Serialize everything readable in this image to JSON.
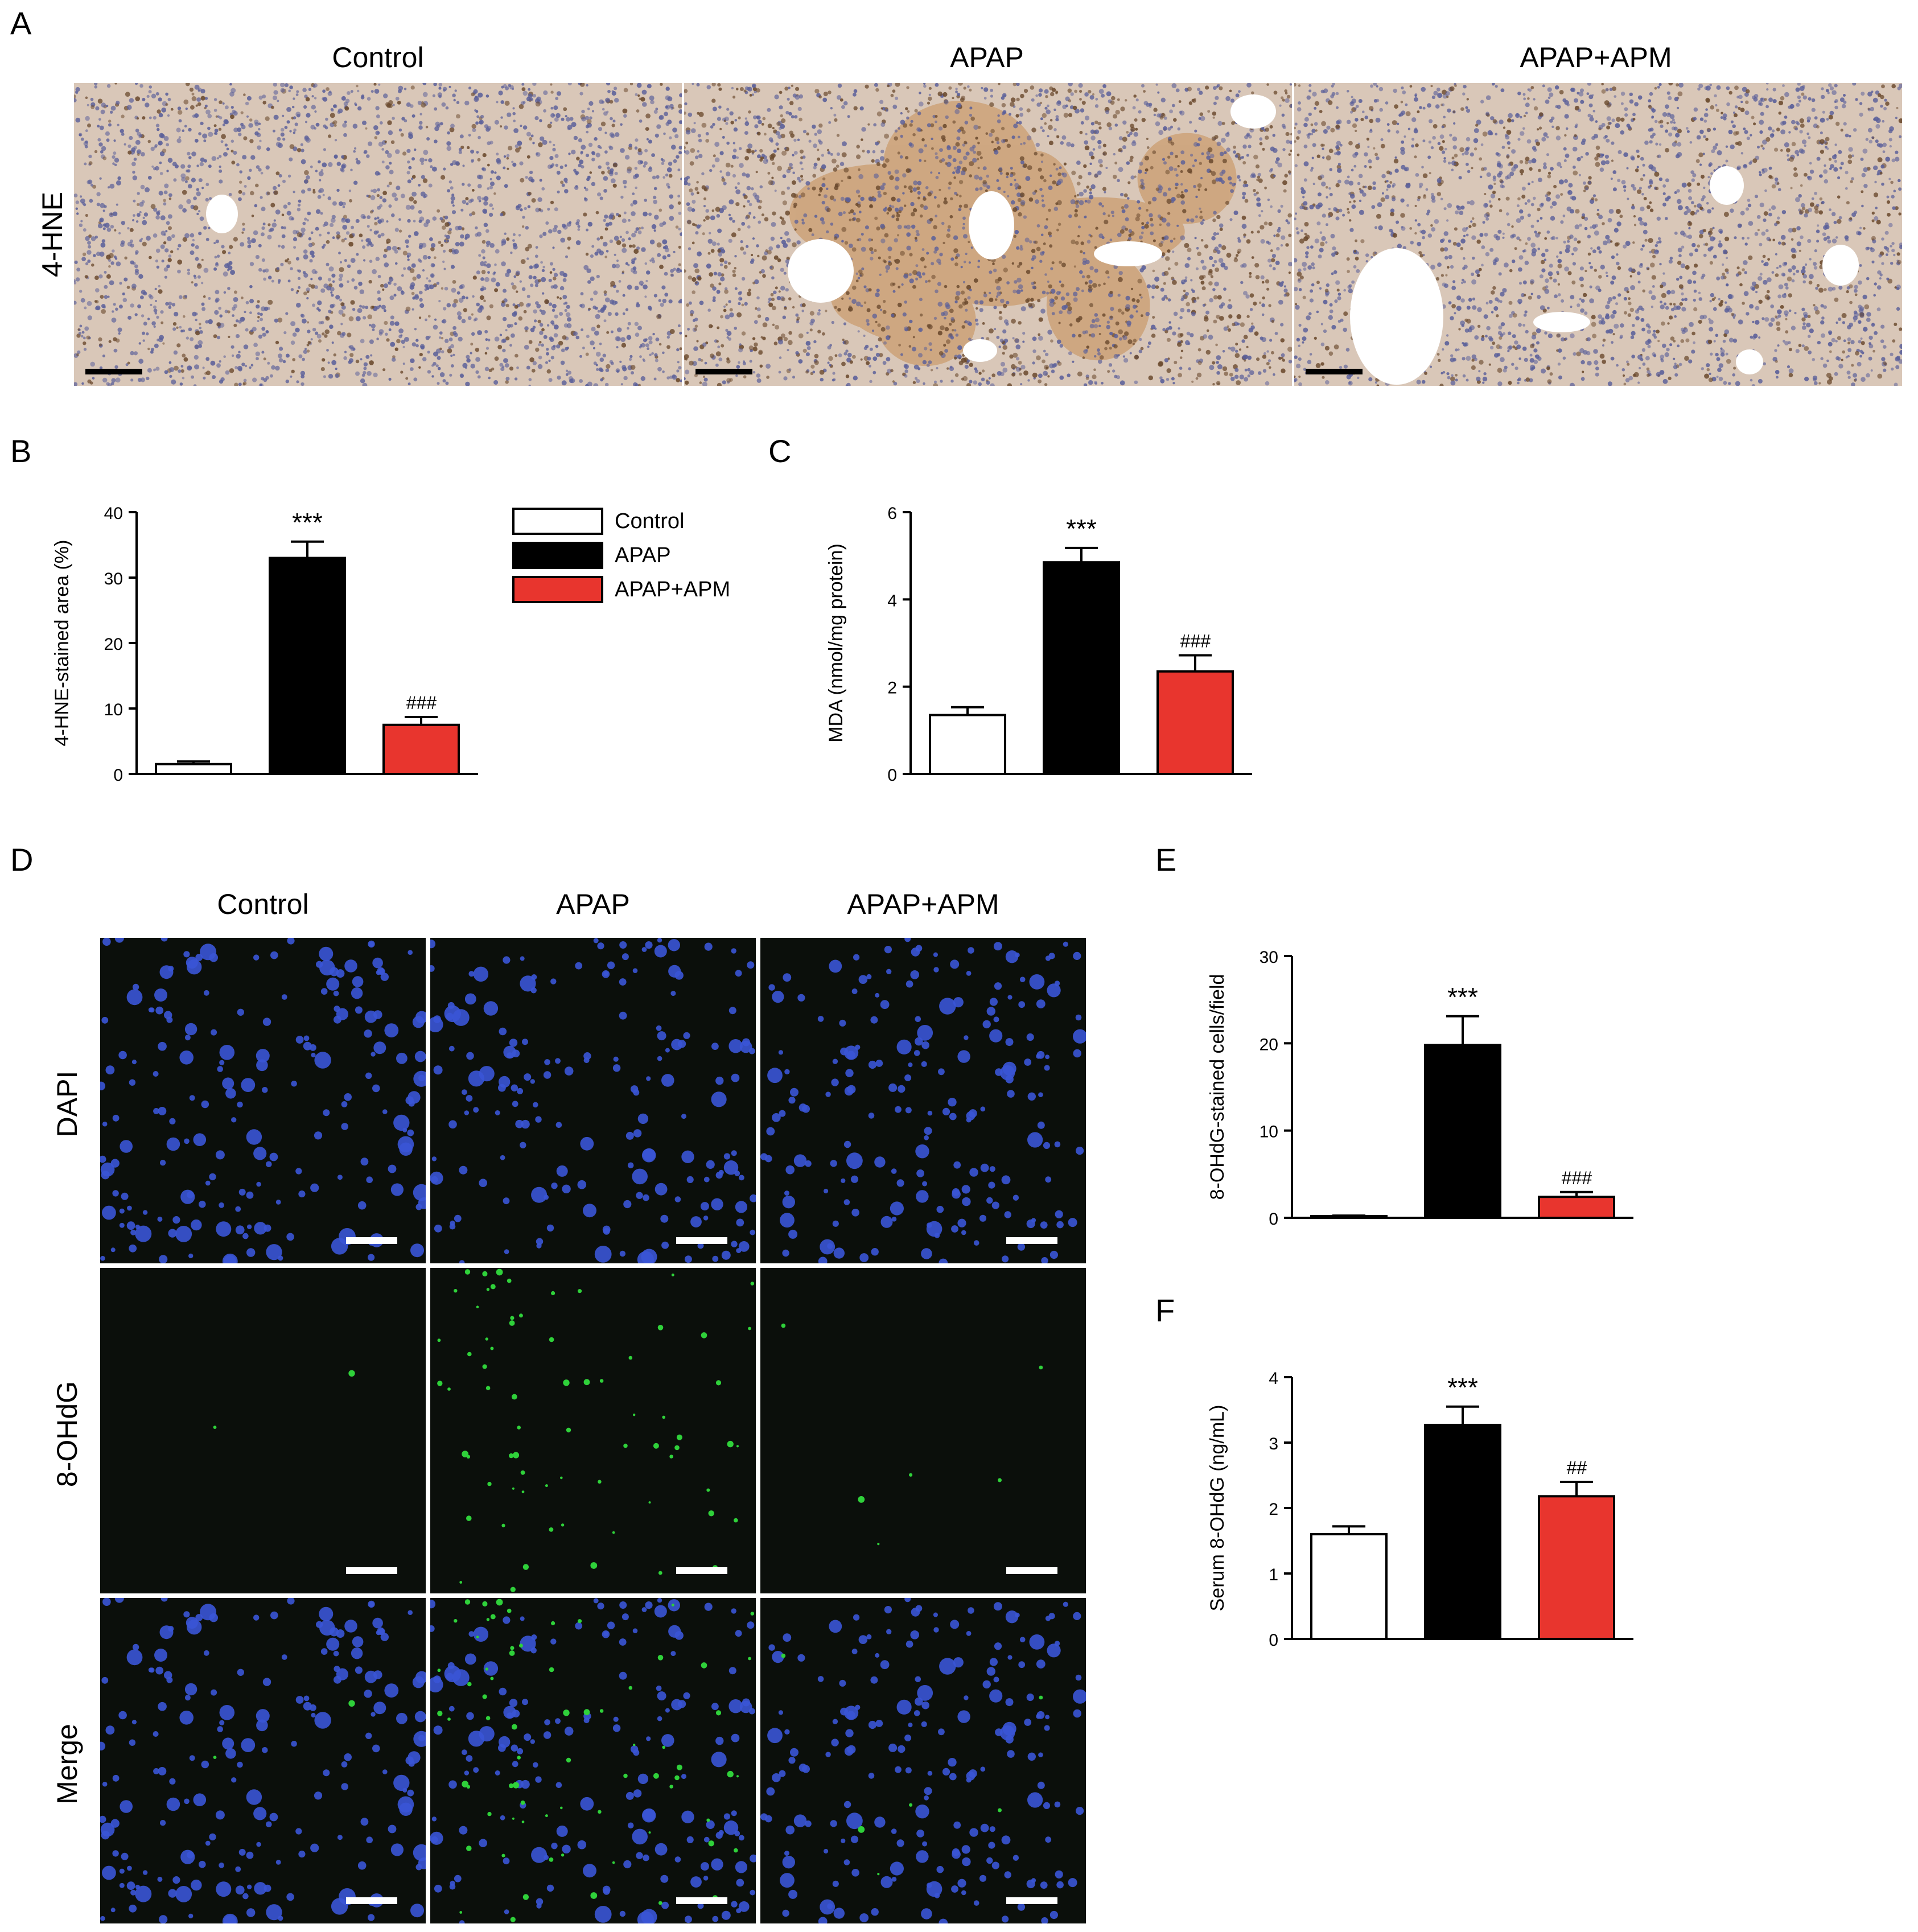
{
  "panels": {
    "A": "A",
    "B": "B",
    "C": "C",
    "D": "D",
    "E": "E",
    "F": "F"
  },
  "groups": [
    "Control",
    "APAP",
    "APAP+APM"
  ],
  "panel_a": {
    "row_label": "4-HNE",
    "columns": [
      "Control",
      "APAP",
      "APAP+APM"
    ]
  },
  "panel_d": {
    "columns": [
      "Control",
      "APAP",
      "APAP+APM"
    ],
    "rows": [
      "DAPI",
      "8-OHdG",
      "Merge"
    ]
  },
  "legend": {
    "items": [
      {
        "label": "Control",
        "color": "#ffffff"
      },
      {
        "label": "APAP",
        "color": "#000000"
      },
      {
        "label": "APAP+APM",
        "color": "#e8352e"
      }
    ]
  },
  "colors": {
    "control": "#ffffff",
    "apap": "#000000",
    "apap_apm": "#e8352e",
    "ihc_background": "#d9c7b8",
    "if_background": "#0b0f0b",
    "dapi": "#3a55d6",
    "ohdg": "#2fd13a"
  },
  "chart_data": [
    {
      "id": "B",
      "type": "bar",
      "categories": [
        "Control",
        "APAP",
        "APAP+APM"
      ],
      "values": [
        1.5,
        33,
        7.5
      ],
      "errors": [
        0.4,
        2.5,
        1.2
      ],
      "ylabel": "4-HNE-stained area (%)",
      "ylim": [
        0,
        40
      ],
      "yticks": [
        0,
        10,
        20,
        30,
        40
      ],
      "annotations": [
        "",
        "***",
        "###"
      ],
      "colors": [
        "#ffffff",
        "#000000",
        "#e8352e"
      ]
    },
    {
      "id": "C",
      "type": "bar",
      "categories": [
        "Control",
        "APAP",
        "APAP+APM"
      ],
      "values": [
        1.35,
        4.85,
        2.35
      ],
      "errors": [
        0.18,
        0.33,
        0.37
      ],
      "ylabel": "MDA  (nmol/mg protein)",
      "ylim": [
        0,
        6
      ],
      "yticks": [
        0,
        2,
        4,
        6
      ],
      "annotations": [
        "",
        "***",
        "###"
      ],
      "colors": [
        "#ffffff",
        "#000000",
        "#e8352e"
      ]
    },
    {
      "id": "E",
      "type": "bar",
      "categories": [
        "Control",
        "APAP",
        "APAP+APM"
      ],
      "values": [
        0.2,
        19.8,
        2.4
      ],
      "errors": [
        0.05,
        3.3,
        0.55
      ],
      "ylabel": "8-OHdG-stained cells/field",
      "ylim": [
        0,
        30
      ],
      "yticks": [
        0,
        10,
        20,
        30
      ],
      "annotations": [
        "",
        "***",
        "###"
      ],
      "colors": [
        "#ffffff",
        "#000000",
        "#e8352e"
      ]
    },
    {
      "id": "F",
      "type": "bar",
      "categories": [
        "Control",
        "APAP",
        "APAP+APM"
      ],
      "values": [
        1.6,
        3.27,
        2.18
      ],
      "errors": [
        0.12,
        0.28,
        0.22
      ],
      "ylabel": "Serum 8-OHdG  (ng/mL)",
      "ylim": [
        0,
        4
      ],
      "yticks": [
        0,
        1,
        2,
        3,
        4
      ],
      "annotations": [
        "",
        "***",
        "##"
      ],
      "colors": [
        "#ffffff",
        "#000000",
        "#e8352e"
      ]
    }
  ]
}
